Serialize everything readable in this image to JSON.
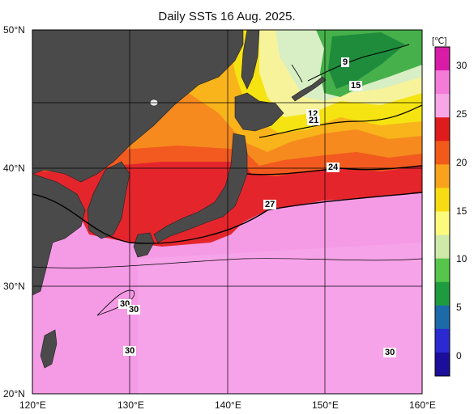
{
  "title": "Daily SSTs 16 Aug. 2025.",
  "axes": {
    "lon_ticks": [
      "120°E",
      "130°E",
      "140°E",
      "150°E",
      "160°E"
    ],
    "lat_ticks": [
      "50°N",
      "40°N",
      "30°N",
      "20°N"
    ]
  },
  "contour_labels": [
    "9",
    "15",
    "12",
    "21",
    "24",
    "27",
    "30",
    "30",
    "30",
    "30"
  ],
  "colorbar": {
    "unit": "[℃]",
    "ticks": [
      "30",
      "25",
      "20",
      "15",
      "10",
      "5",
      "0"
    ],
    "range": [
      -2,
      32
    ],
    "colors": [
      "#d81ca8",
      "#f47cd8",
      "#f7a6e6",
      "#e01b1b",
      "#f25a1a",
      "#f9a21b",
      "#f7dc14",
      "#fbfa7c",
      "#cfe9a8",
      "#55c64a",
      "#1f9b3f",
      "#1c6aa8",
      "#2a2ad0",
      "#1a0e9a"
    ]
  },
  "map_colors": {
    "land": "#4a4a4a",
    "warm_pink": "#f39be6",
    "light_pink": "#f6b3ee",
    "red": "#e8262a",
    "red_orange": "#f25724",
    "orange": "#f79021",
    "yellow_orange": "#f8c117",
    "yellow": "#f5e60f",
    "pale_yellow": "#f8f6a0",
    "pale_green": "#d9efc3",
    "green": "#47b24a",
    "dark_green": "#1d8c3a"
  }
}
